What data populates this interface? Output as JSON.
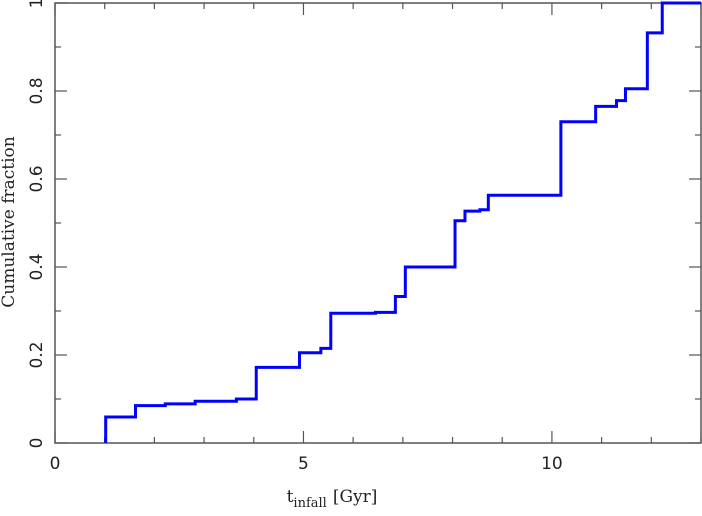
{
  "chart_data": {
    "type": "line",
    "subtype": "step-cumulative",
    "title": "",
    "xlabel": "t_infall [Gyr]",
    "xlabel_main": "t",
    "xlabel_sub": "infall",
    "xlabel_unit": "[Gyr]",
    "ylabel": "Cumulative fraction",
    "xlim": [
      0,
      13
    ],
    "ylim": [
      0,
      1
    ],
    "x_ticks": [
      0,
      5,
      10
    ],
    "x_tick_labels": [
      "0",
      "5",
      "10"
    ],
    "x_minor_step": 1,
    "y_ticks": [
      0,
      0.2,
      0.4,
      0.6,
      0.8,
      1
    ],
    "y_tick_labels": [
      "0",
      "0.2",
      "0.4",
      "0.6",
      "0.8",
      "1"
    ],
    "y_minor_step": 0.1,
    "grid": false,
    "legend": null,
    "series": [
      {
        "name": "cumulative fraction",
        "color": "#0000ff",
        "x": [
          1.02,
          1.62,
          2.22,
          2.82,
          3.65,
          4.05,
          4.92,
          5.35,
          5.55,
          6.45,
          6.85,
          7.05,
          8.05,
          8.25,
          8.55,
          8.72,
          10.18,
          10.88,
          11.3,
          11.48,
          11.92,
          12.22,
          13.0
        ],
        "y": [
          0.059,
          0.085,
          0.089,
          0.095,
          0.1,
          0.172,
          0.205,
          0.215,
          0.295,
          0.297,
          0.333,
          0.4,
          0.505,
          0.527,
          0.53,
          0.563,
          0.73,
          0.765,
          0.778,
          0.805,
          0.932,
          1.0,
          1.0
        ]
      }
    ]
  },
  "colors": {
    "axis": "#555555",
    "line": "#0000ff",
    "background": "#ffffff"
  }
}
